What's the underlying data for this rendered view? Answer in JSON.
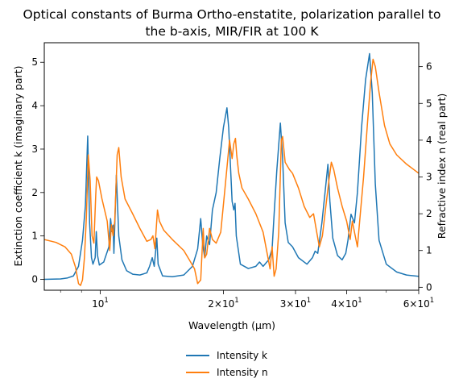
{
  "chart_data": {
    "type": "line",
    "title_lines": [
      "Optical constants of Burma Ortho-enstatite, polarization parallel to",
      "the b-axis, MIR/FIR at 100 K"
    ],
    "xlabel": "Wavelength (μm)",
    "ylabel_left": "Extinction coefficient k (imaginary part)",
    "ylabel_right": "Refractive index n (real part)",
    "x_scale": "log",
    "xlim": [
      7.3,
      60
    ],
    "ylim_left": [
      -0.25,
      5.45
    ],
    "ylim_right": [
      -0.08,
      6.65
    ],
    "grid": false,
    "legend_position": "bottom-center (below plot)",
    "x_ticks_major": [
      {
        "value": 10,
        "label": "10",
        "exp": "1"
      },
      {
        "value": 20,
        "label": "2×10",
        "exp": "1"
      },
      {
        "value": 30,
        "label": "3×10",
        "exp": "1"
      },
      {
        "value": 40,
        "label": "4×10",
        "exp": "1"
      },
      {
        "value": 60,
        "label": "6×10",
        "exp": "1"
      }
    ],
    "x_ticks_minor": [
      8,
      9,
      50
    ],
    "y_ticks_left": [
      0,
      1,
      2,
      3,
      4,
      5
    ],
    "y_ticks_right": [
      0,
      1,
      2,
      3,
      4,
      5,
      6
    ],
    "series": [
      {
        "name": "Intensity k",
        "axis": "left",
        "color": "#1f77b4",
        "points": [
          [
            7.3,
            0.0
          ],
          [
            8.0,
            0.01
          ],
          [
            8.3,
            0.03
          ],
          [
            8.6,
            0.08
          ],
          [
            8.85,
            0.3
          ],
          [
            9.05,
            0.9
          ],
          [
            9.2,
            1.7
          ],
          [
            9.32,
            3.3
          ],
          [
            9.42,
            1.3
          ],
          [
            9.52,
            0.5
          ],
          [
            9.6,
            0.35
          ],
          [
            9.72,
            0.5
          ],
          [
            9.78,
            1.1
          ],
          [
            9.85,
            0.55
          ],
          [
            9.95,
            0.33
          ],
          [
            10.2,
            0.4
          ],
          [
            10.5,
            0.75
          ],
          [
            10.6,
            1.4
          ],
          [
            10.68,
            1.1
          ],
          [
            10.75,
            1.25
          ],
          [
            10.8,
            0.6
          ],
          [
            10.95,
            2.4
          ],
          [
            11.1,
            1.0
          ],
          [
            11.3,
            0.45
          ],
          [
            11.6,
            0.2
          ],
          [
            12.0,
            0.12
          ],
          [
            12.5,
            0.1
          ],
          [
            13.0,
            0.15
          ],
          [
            13.2,
            0.3
          ],
          [
            13.4,
            0.5
          ],
          [
            13.55,
            0.3
          ],
          [
            13.75,
            0.95
          ],
          [
            13.85,
            0.35
          ],
          [
            14.2,
            0.08
          ],
          [
            15.0,
            0.06
          ],
          [
            16.0,
            0.1
          ],
          [
            16.8,
            0.3
          ],
          [
            17.3,
            0.7
          ],
          [
            17.6,
            1.4
          ],
          [
            17.8,
            0.8
          ],
          [
            18.0,
            0.5
          ],
          [
            18.2,
            1.0
          ],
          [
            18.5,
            0.8
          ],
          [
            18.8,
            1.6
          ],
          [
            19.2,
            2.0
          ],
          [
            19.6,
            2.8
          ],
          [
            20.0,
            3.5
          ],
          [
            20.4,
            3.95
          ],
          [
            20.6,
            3.5
          ],
          [
            21.0,
            1.8
          ],
          [
            21.2,
            1.6
          ],
          [
            21.35,
            1.75
          ],
          [
            21.5,
            1.0
          ],
          [
            22.0,
            0.35
          ],
          [
            23.0,
            0.25
          ],
          [
            24.0,
            0.3
          ],
          [
            24.5,
            0.4
          ],
          [
            25.0,
            0.3
          ],
          [
            25.8,
            0.45
          ],
          [
            26.3,
            0.7
          ],
          [
            26.6,
            1.5
          ],
          [
            27.0,
            2.5
          ],
          [
            27.3,
            3.1
          ],
          [
            27.55,
            3.6
          ],
          [
            27.9,
            2.8
          ],
          [
            28.3,
            1.3
          ],
          [
            28.8,
            0.85
          ],
          [
            29.5,
            0.75
          ],
          [
            30.5,
            0.5
          ],
          [
            32.0,
            0.35
          ],
          [
            33.0,
            0.5
          ],
          [
            33.5,
            0.65
          ],
          [
            34.0,
            0.6
          ],
          [
            34.8,
            1.3
          ],
          [
            35.6,
            2.2
          ],
          [
            36.0,
            2.65
          ],
          [
            36.4,
            1.8
          ],
          [
            37.0,
            0.95
          ],
          [
            38.0,
            0.55
          ],
          [
            39.0,
            0.45
          ],
          [
            39.8,
            0.6
          ],
          [
            40.3,
            0.9
          ],
          [
            41.0,
            1.5
          ],
          [
            41.8,
            1.3
          ],
          [
            42.5,
            2.0
          ],
          [
            43.5,
            3.5
          ],
          [
            44.5,
            4.6
          ],
          [
            45.5,
            5.2
          ],
          [
            46.2,
            4.3
          ],
          [
            47.0,
            2.2
          ],
          [
            48.0,
            0.9
          ],
          [
            50.0,
            0.35
          ],
          [
            53.0,
            0.17
          ],
          [
            56.0,
            0.1
          ],
          [
            60.0,
            0.07
          ]
        ]
      },
      {
        "name": "Intensity n",
        "axis": "right",
        "color": "#ff7f0e",
        "points": [
          [
            7.3,
            1.3
          ],
          [
            7.8,
            1.22
          ],
          [
            8.2,
            1.1
          ],
          [
            8.5,
            0.9
          ],
          [
            8.7,
            0.55
          ],
          [
            8.85,
            0.1
          ],
          [
            8.95,
            0.05
          ],
          [
            9.05,
            0.2
          ],
          [
            9.15,
            0.8
          ],
          [
            9.25,
            1.9
          ],
          [
            9.35,
            3.6
          ],
          [
            9.45,
            2.9
          ],
          [
            9.55,
            1.4
          ],
          [
            9.65,
            1.2
          ],
          [
            9.75,
            2.5
          ],
          [
            9.8,
            3.0
          ],
          [
            9.9,
            2.9
          ],
          [
            10.1,
            2.4
          ],
          [
            10.4,
            1.8
          ],
          [
            10.55,
            1.0
          ],
          [
            10.65,
            1.7
          ],
          [
            10.75,
            1.4
          ],
          [
            10.85,
            1.8
          ],
          [
            11.0,
            3.6
          ],
          [
            11.1,
            3.8
          ],
          [
            11.25,
            3.0
          ],
          [
            11.5,
            2.4
          ],
          [
            12.0,
            2.0
          ],
          [
            12.5,
            1.6
          ],
          [
            13.0,
            1.25
          ],
          [
            13.3,
            1.3
          ],
          [
            13.45,
            1.4
          ],
          [
            13.6,
            1.05
          ],
          [
            13.8,
            2.1
          ],
          [
            13.95,
            1.8
          ],
          [
            14.3,
            1.55
          ],
          [
            15.0,
            1.3
          ],
          [
            16.0,
            1.0
          ],
          [
            16.5,
            0.75
          ],
          [
            17.0,
            0.5
          ],
          [
            17.3,
            0.1
          ],
          [
            17.6,
            0.2
          ],
          [
            17.85,
            1.6
          ],
          [
            18.0,
            0.8
          ],
          [
            18.2,
            0.9
          ],
          [
            18.5,
            1.6
          ],
          [
            18.8,
            1.3
          ],
          [
            19.2,
            1.2
          ],
          [
            19.7,
            1.5
          ],
          [
            20.1,
            2.5
          ],
          [
            20.5,
            3.5
          ],
          [
            20.7,
            4.0
          ],
          [
            21.0,
            3.5
          ],
          [
            21.2,
            3.9
          ],
          [
            21.4,
            4.05
          ],
          [
            21.55,
            3.6
          ],
          [
            21.8,
            3.1
          ],
          [
            22.2,
            2.7
          ],
          [
            23.0,
            2.4
          ],
          [
            24.0,
            2.0
          ],
          [
            25.0,
            1.5
          ],
          [
            25.6,
            0.9
          ],
          [
            26.0,
            0.5
          ],
          [
            26.3,
            1.1
          ],
          [
            26.6,
            0.3
          ],
          [
            26.9,
            0.5
          ],
          [
            27.3,
            1.5
          ],
          [
            27.7,
            4.0
          ],
          [
            27.9,
            4.1
          ],
          [
            28.3,
            3.4
          ],
          [
            29.0,
            3.2
          ],
          [
            29.5,
            3.1
          ],
          [
            30.5,
            2.7
          ],
          [
            31.5,
            2.2
          ],
          [
            32.5,
            1.9
          ],
          [
            33.2,
            2.0
          ],
          [
            33.8,
            1.5
          ],
          [
            34.3,
            1.1
          ],
          [
            34.9,
            1.4
          ],
          [
            35.5,
            2.1
          ],
          [
            36.2,
            2.9
          ],
          [
            36.7,
            3.4
          ],
          [
            37.2,
            3.2
          ],
          [
            38.0,
            2.7
          ],
          [
            39.0,
            2.2
          ],
          [
            40.0,
            1.8
          ],
          [
            40.8,
            1.3
          ],
          [
            41.3,
            1.8
          ],
          [
            41.8,
            1.5
          ],
          [
            42.5,
            1.1
          ],
          [
            43.2,
            2.0
          ],
          [
            44.0,
            3.0
          ],
          [
            45.0,
            4.5
          ],
          [
            45.8,
            5.6
          ],
          [
            46.4,
            6.2
          ],
          [
            47.0,
            6.0
          ],
          [
            48.0,
            5.3
          ],
          [
            49.5,
            4.4
          ],
          [
            51.0,
            3.9
          ],
          [
            53.0,
            3.6
          ],
          [
            56.0,
            3.35
          ],
          [
            60.0,
            3.1
          ]
        ]
      }
    ]
  }
}
